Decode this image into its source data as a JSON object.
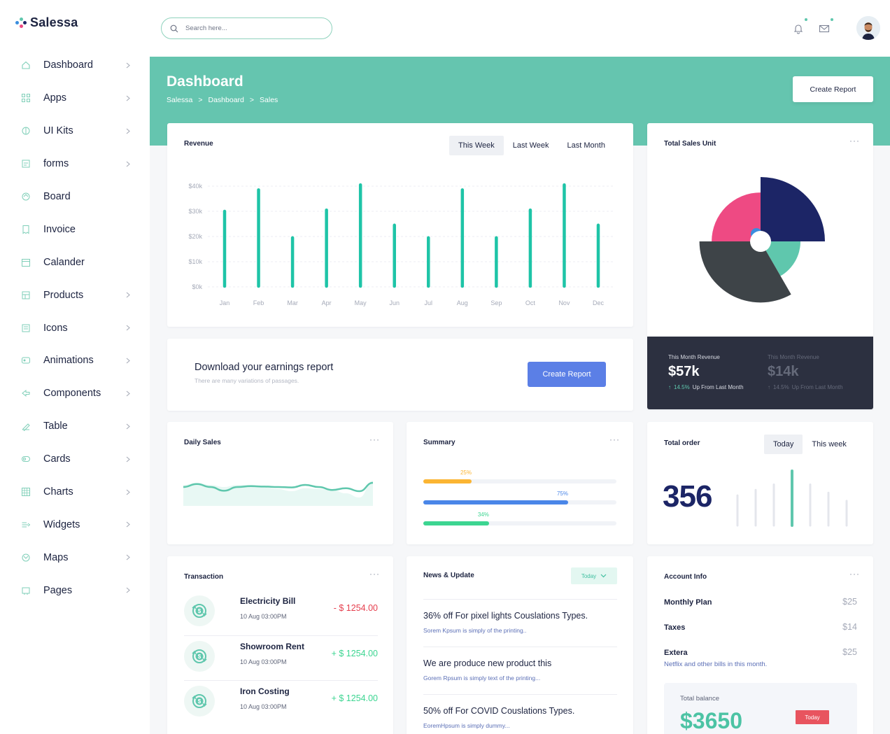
{
  "brand": {
    "name": "Salessa"
  },
  "sidebar": {
    "items": [
      {
        "label": "Dashboard",
        "icon": "home-icon",
        "chevron": true
      },
      {
        "label": "Apps",
        "icon": "grid-icon",
        "chevron": true
      },
      {
        "label": "UI Kits",
        "icon": "layers-icon",
        "chevron": true
      },
      {
        "label": "forms",
        "icon": "form-icon",
        "chevron": true
      },
      {
        "label": "Board",
        "icon": "board-icon",
        "chevron": false
      },
      {
        "label": "Invoice",
        "icon": "invoice-icon",
        "chevron": false
      },
      {
        "label": "Calander",
        "icon": "calendar-icon",
        "chevron": false
      },
      {
        "label": "Products",
        "icon": "products-icon",
        "chevron": true
      },
      {
        "label": "Icons",
        "icon": "icons-icon",
        "chevron": true
      },
      {
        "label": "Animations",
        "icon": "animation-icon",
        "chevron": true
      },
      {
        "label": "Components",
        "icon": "components-icon",
        "chevron": true
      },
      {
        "label": "Table",
        "icon": "table-icon",
        "chevron": true
      },
      {
        "label": "Cards",
        "icon": "cards-icon",
        "chevron": true
      },
      {
        "label": "Charts",
        "icon": "charts-icon",
        "chevron": true
      },
      {
        "label": "Widgets",
        "icon": "widgets-icon",
        "chevron": true
      },
      {
        "label": "Maps",
        "icon": "maps-icon",
        "chevron": true
      },
      {
        "label": "Pages",
        "icon": "pages-icon",
        "chevron": true
      }
    ]
  },
  "search": {
    "placeholder": "Search here..."
  },
  "header": {
    "title": "Dashboard",
    "breadcrumb": [
      "Salessa",
      ">",
      "Dashboard",
      ">",
      "Sales"
    ],
    "create_report": "Create Report"
  },
  "revenue": {
    "title": "Revenue",
    "tabs": [
      "This Week",
      "Last Week",
      "Last Month"
    ],
    "active_tab": 0
  },
  "download": {
    "title": "Download your earnings report",
    "subtitle": "There are many variations of passages.",
    "button": "Create Report"
  },
  "total_sales": {
    "title": "Total Sales Unit",
    "this_month_label": "This Month Revenue",
    "this_month_value": "$57k",
    "this_month_change": "14.5%",
    "this_month_note": "Up From Last Month",
    "prev_label": "This Month Revenue",
    "prev_value": "$14k",
    "prev_change": "14.5%",
    "prev_note": "Up From Last Month"
  },
  "daily_sales": {
    "title": "Daily Sales"
  },
  "summary": {
    "title": "Summary",
    "bars": [
      {
        "label": "25%",
        "value": 0.25,
        "color": "#fbb533"
      },
      {
        "label": "75%",
        "value": 0.75,
        "color": "#4a86e8"
      },
      {
        "label": "34%",
        "value": 0.34,
        "color": "#3cd591"
      }
    ]
  },
  "total_order": {
    "title": "Total order",
    "tabs": [
      "Today",
      "This week"
    ],
    "active_tab": 0,
    "value": "356"
  },
  "transaction": {
    "title": "Transaction",
    "rows": [
      {
        "name": "Electricity Bill",
        "date": "10 Aug 03:00PM",
        "amount": "- $ 1254.00",
        "color": "#e53e4d"
      },
      {
        "name": "Showroom Rent",
        "date": "10 Aug 03:00PM",
        "amount": "+ $ 1254.00",
        "color": "#3cd591"
      },
      {
        "name": "Iron Costing",
        "date": "10 Aug 03:00PM",
        "amount": "+ $ 1254.00",
        "color": "#3cd591"
      }
    ]
  },
  "news": {
    "title": "News & Update",
    "filter": "Today",
    "items": [
      {
        "title": "36% off For pixel lights Couslations Types.",
        "sub": "Sorem Kpsum is simply of the printing.."
      },
      {
        "title": "We are produce new product this",
        "sub": "Gorem Rpsum is simply text of the printing..."
      },
      {
        "title": "50% off For COVID Couslations Types.",
        "sub": "EoremHpsum is simply dummy..."
      }
    ]
  },
  "account": {
    "title": "Account Info",
    "rows": [
      {
        "label": "Monthly Plan",
        "value": "$25"
      },
      {
        "label": "Taxes",
        "value": "$14"
      },
      {
        "label": "Extera",
        "value": "$25"
      }
    ],
    "note": "Netflix and other bills in this month.",
    "balance_label": "Total balance",
    "balance_value": "$3650",
    "balance_badge": "Today"
  },
  "colors": {
    "teal": "#65c5af",
    "accent": "#1ec4a7",
    "navy": "#1c2566",
    "pink": "#ee4a83",
    "dark": "#3e4448",
    "blue_button": "#5b7fe6",
    "red": "#e53e4d"
  },
  "chart_data": [
    {
      "type": "bar",
      "title": "Revenue",
      "categories": [
        "Jan",
        "Feb",
        "Mar",
        "Apr",
        "May",
        "Jun",
        "Jul",
        "Aug",
        "Sep",
        "Oct",
        "Nov",
        "Dec"
      ],
      "values": [
        30000,
        38500,
        19500,
        30500,
        40500,
        24500,
        19500,
        38500,
        19500,
        30500,
        40500,
        24500
      ],
      "yticks": [
        "$0k",
        "$10k",
        "$20k",
        "$30k",
        "$40k"
      ],
      "ylim": [
        0,
        40000
      ],
      "grid": true
    },
    {
      "type": "pie",
      "title": "Total Sales Unit",
      "variant": "polar-area",
      "slices": [
        {
          "value": 90,
          "radius": 1.0,
          "color": "#1c2566"
        },
        {
          "value": 60,
          "radius": 0.62,
          "color": "#5fc7ad"
        },
        {
          "value": 120,
          "radius": 0.95,
          "color": "#3e4448"
        },
        {
          "value": 90,
          "radius": 0.76,
          "color": "#ee4a83"
        }
      ]
    },
    {
      "type": "line",
      "title": "Daily Sales",
      "values": [
        0.45,
        0.52,
        0.45,
        0.36,
        0.45,
        0.47,
        0.46,
        0.45,
        0.44,
        0.5,
        0.45,
        0.38,
        0.42,
        0.35,
        0.55
      ],
      "fill_values": [
        0.5,
        0.55,
        0.5,
        0.45,
        0.5,
        0.5,
        0.45,
        0.4,
        0.35,
        0.42,
        0.4,
        0.38,
        0.3,
        0.2,
        0.6
      ]
    },
    {
      "type": "bar",
      "title": "Total order",
      "values": [
        0.55,
        0.65,
        0.75,
        1.0,
        0.75,
        0.6,
        0.45
      ],
      "highlight": 3
    }
  ]
}
